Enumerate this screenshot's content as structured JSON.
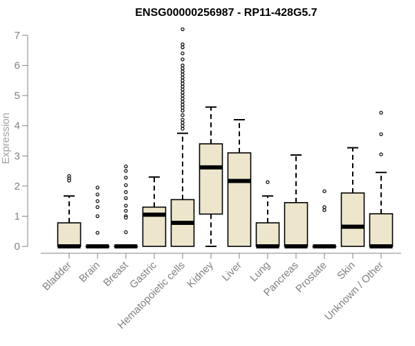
{
  "chart_data": {
    "type": "box",
    "title": "ENSG00000256987 - RP11-428G5.7",
    "ylabel": "Expression",
    "xlabel": "",
    "ylim": [
      0,
      7
    ],
    "yticks": [
      "0",
      "1",
      "2",
      "3",
      "4",
      "5",
      "6",
      "7"
    ],
    "grid": false,
    "colors": {
      "box_fill": "#ede6cc",
      "box_stroke": "#000000",
      "axis": "#808080"
    },
    "categories": [
      "Bladder",
      "Brain",
      "Breast",
      "Gastric",
      "Hematopoietic cells",
      "Kidney",
      "Liver",
      "Lung",
      "Pancreas",
      "Prostate",
      "Skin",
      "Unknown / Other"
    ],
    "boxes": [
      {
        "category": "Bladder",
        "q1": 0,
        "median": 0,
        "q3": 0.78,
        "whisker_low": 0,
        "whisker_high": 1.67,
        "outliers": [
          2.33,
          2.25,
          2.18
        ]
      },
      {
        "category": "Brain",
        "q1": 0,
        "median": 0,
        "q3": 0,
        "whisker_low": 0,
        "whisker_high": 0,
        "outliers": [
          1.95,
          1.72,
          1.5,
          1.3,
          1.0,
          0.45
        ]
      },
      {
        "category": "Breast",
        "q1": 0,
        "median": 0,
        "q3": 0,
        "whisker_low": 0,
        "whisker_high": 0,
        "outliers": [
          2.65,
          2.5,
          2.28,
          2.03,
          1.8,
          1.6,
          1.35,
          1.18,
          1.0,
          0.95,
          0.47
        ]
      },
      {
        "category": "Gastric",
        "q1": 0,
        "median": 1.05,
        "q3": 1.3,
        "whisker_low": 0,
        "whisker_high": 2.3,
        "outliers": []
      },
      {
        "category": "Hematopoietic cells",
        "q1": 0,
        "median": 0.78,
        "q3": 1.55,
        "whisker_low": 0,
        "whisker_high": 3.75,
        "outliers": [
          3.9,
          4.0,
          4.1,
          4.2,
          4.35,
          4.5,
          4.6,
          4.7,
          4.8,
          4.9,
          5.0,
          5.1,
          5.2,
          5.3,
          5.4,
          5.5,
          5.6,
          5.7,
          5.8,
          5.9,
          6.0,
          6.2,
          6.4,
          6.6,
          6.7,
          7.2
        ]
      },
      {
        "category": "Kidney",
        "q1": 1.07,
        "median": 2.62,
        "q3": 3.4,
        "whisker_low": 0,
        "whisker_high": 4.62,
        "outliers": []
      },
      {
        "category": "Liver",
        "q1": 0,
        "median": 2.17,
        "q3": 3.1,
        "whisker_low": 0,
        "whisker_high": 4.2,
        "outliers": []
      },
      {
        "category": "Lung",
        "q1": 0,
        "median": 0,
        "q3": 0.78,
        "whisker_low": 0,
        "whisker_high": 1.67,
        "outliers": [
          2.13
        ]
      },
      {
        "category": "Pancreas",
        "q1": 0,
        "median": 0,
        "q3": 1.45,
        "whisker_low": 0,
        "whisker_high": 3.03,
        "outliers": []
      },
      {
        "category": "Prostate",
        "q1": 0,
        "median": 0,
        "q3": 0,
        "whisker_low": 0,
        "whisker_high": 0,
        "outliers": [
          1.83,
          1.3,
          1.2
        ]
      },
      {
        "category": "Skin",
        "q1": 0,
        "median": 0.65,
        "q3": 1.77,
        "whisker_low": 0,
        "whisker_high": 3.27,
        "outliers": []
      },
      {
        "category": "Unknown / Other",
        "q1": 0,
        "median": 0,
        "q3": 1.08,
        "whisker_low": 0,
        "whisker_high": 2.45,
        "outliers": [
          3.05,
          3.72,
          4.43
        ]
      }
    ]
  }
}
